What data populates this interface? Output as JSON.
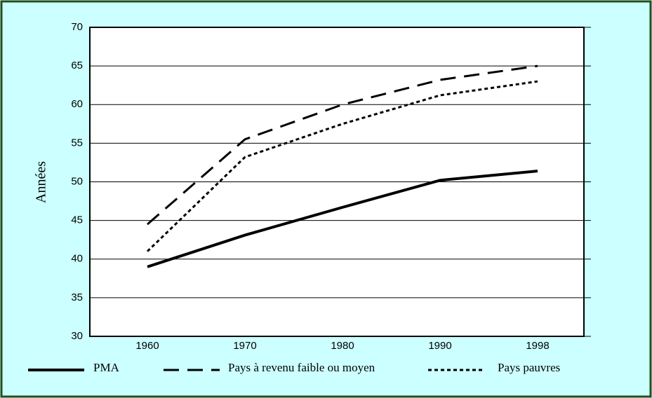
{
  "chart_data": {
    "type": "line",
    "y_label": "Années",
    "categories": [
      "1960",
      "1970",
      "1980",
      "1990",
      "1998"
    ],
    "series": [
      {
        "name": "PMA",
        "color": "#000000",
        "values": [
          39,
          43.1,
          46.7,
          50.2,
          51.4
        ]
      },
      {
        "name": "Pays à revenu faible ou moyen",
        "color": "#000000",
        "values": [
          44.5,
          55.5,
          60,
          63.2,
          65
        ]
      },
      {
        "name": "Pays pauvres",
        "color": "#000000",
        "values": [
          41,
          53.2,
          57.5,
          61.2,
          63
        ]
      }
    ],
    "ylim": [
      30,
      70
    ],
    "yticks": [
      30,
      35,
      40,
      45,
      50,
      55,
      60,
      65,
      70
    ],
    "grid": true
  }
}
